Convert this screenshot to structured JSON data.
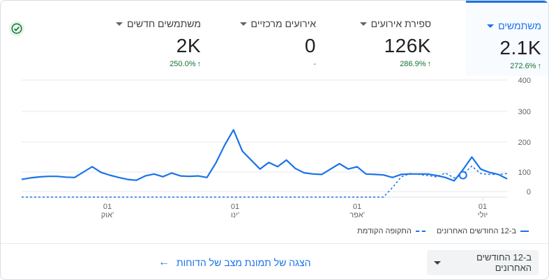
{
  "metrics": [
    {
      "label": "משתמשים",
      "value": "2.1K",
      "delta": "272.6%",
      "trend": "up",
      "active": true
    },
    {
      "label": "ספירת אירועים",
      "value": "126K",
      "delta": "286.9%",
      "trend": "up",
      "active": false
    },
    {
      "label": "אירועים מרכזיים",
      "value": "0",
      "delta": "-",
      "trend": "none",
      "active": false
    },
    {
      "label": "משתמשים חדשים",
      "value": "2K",
      "delta": "250.0%",
      "trend": "up",
      "active": false
    }
  ],
  "status_icon": "check-circle-icon",
  "chart_data": {
    "type": "line",
    "yticks": [
      0,
      100,
      200,
      300,
      400
    ],
    "ylim": [
      0,
      400
    ],
    "xticks": [
      {
        "day": "01",
        "month": "אוק'"
      },
      {
        "day": "01",
        "month": "ינו'"
      },
      {
        "day": "01",
        "month": "אפר'"
      },
      {
        "day": "01",
        "month": "יולי"
      }
    ],
    "series": [
      {
        "name": "ב-12 החודשים האחרונים",
        "style": "solid",
        "color": "#1a73e8",
        "values": [
          62,
          70,
          75,
          78,
          78,
          74,
          72,
          100,
          118,
          98,
          84,
          72,
          62,
          58,
          80,
          90,
          76,
          95,
          80,
          78,
          80,
          72,
          130,
          190,
          240,
          170,
          140,
          110,
          132,
          118,
          140,
          112,
          96,
          90,
          88,
          110,
          128,
          110,
          118,
          90,
          88,
          85,
          72,
          88,
          90,
          90,
          90,
          82,
          72,
          55,
          108,
          150,
          110,
          98,
          88,
          65
        ]
      },
      {
        "name": "התקופה הקודמת",
        "style": "dashed",
        "color": "#1a73e8",
        "values": [
          0,
          0,
          0,
          0,
          0,
          0,
          0,
          0,
          0,
          0,
          0,
          0,
          0,
          0,
          0,
          0,
          0,
          0,
          0,
          0,
          0,
          0,
          0,
          0,
          0,
          0,
          0,
          0,
          0,
          0,
          0,
          0,
          0,
          0,
          0,
          0,
          0,
          0,
          0,
          0,
          0,
          0,
          20,
          75,
          92,
          88,
          82,
          75,
          95,
          70,
          88,
          120,
          92,
          88,
          88,
          92
        ]
      }
    ],
    "highlight_index": 50
  },
  "legend": {
    "current": "ב-12 החודשים האחרונים",
    "previous": "התקופה הקודמת"
  },
  "footer": {
    "period_selector": "ב-12 החודשים האחרונים",
    "report_link": "הצגה של תמונת מצב של הדוחות"
  }
}
